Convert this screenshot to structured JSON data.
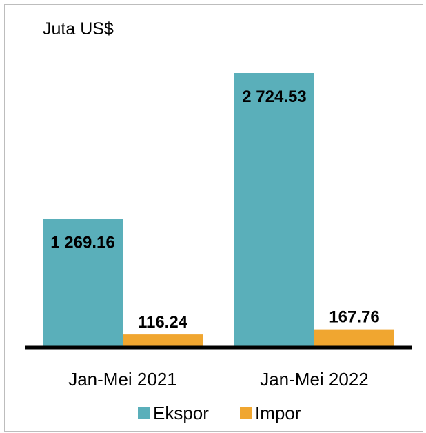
{
  "chart_data": {
    "type": "bar",
    "unit_label": "Juta US$",
    "categories": [
      "Jan-Mei 2021",
      "Jan-Mei 2022"
    ],
    "series": [
      {
        "name": "Ekspor",
        "color": "#5aafba",
        "values": [
          1269.16,
          2724.53
        ],
        "labels": [
          "1 269.16",
          "2 724.53"
        ]
      },
      {
        "name": "Impor",
        "color": "#f0a630",
        "values": [
          116.24,
          167.76
        ],
        "labels": [
          "116.24",
          "167.76"
        ]
      }
    ],
    "ylim": [
      0,
      2800
    ],
    "grid": false,
    "legend_position": "bottom"
  }
}
